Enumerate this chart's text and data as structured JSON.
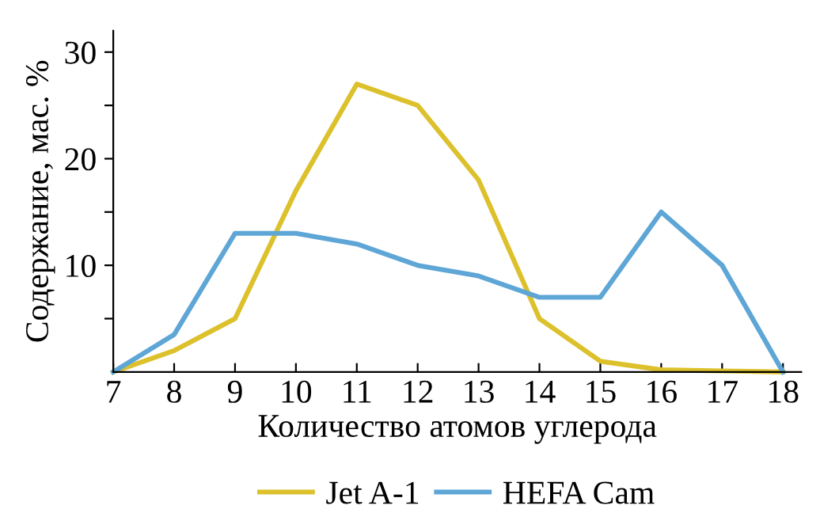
{
  "chart_data": {
    "type": "line",
    "xlabel": "Количество атомов углерода",
    "ylabel": "Содержание, мас. %",
    "x": [
      7,
      8,
      9,
      10,
      11,
      12,
      13,
      14,
      15,
      16,
      17,
      18
    ],
    "series": [
      {
        "name": "Jet A-1",
        "color": "#dcc12c",
        "values": [
          0,
          2,
          5,
          17,
          27,
          25,
          18,
          5,
          1,
          0.2,
          0.1,
          0
        ]
      },
      {
        "name": "HEFA Cam",
        "color": "#5ea6d6",
        "values": [
          0,
          3.5,
          13,
          13,
          12,
          10,
          9,
          7,
          7,
          15,
          10,
          0
        ]
      }
    ],
    "xlim": [
      7,
      18.3
    ],
    "xticks": [
      7,
      8,
      9,
      10,
      11,
      12,
      13,
      14,
      15,
      16,
      17,
      18
    ],
    "ylim": [
      0,
      32
    ],
    "yticks": [
      {
        "value": 5,
        "label": null
      },
      10,
      {
        "value": 15,
        "label": null
      },
      20,
      {
        "value": 25,
        "label": null
      },
      30
    ],
    "legend": "bottom",
    "grid": false,
    "marker": "none",
    "line_style": "solid"
  }
}
